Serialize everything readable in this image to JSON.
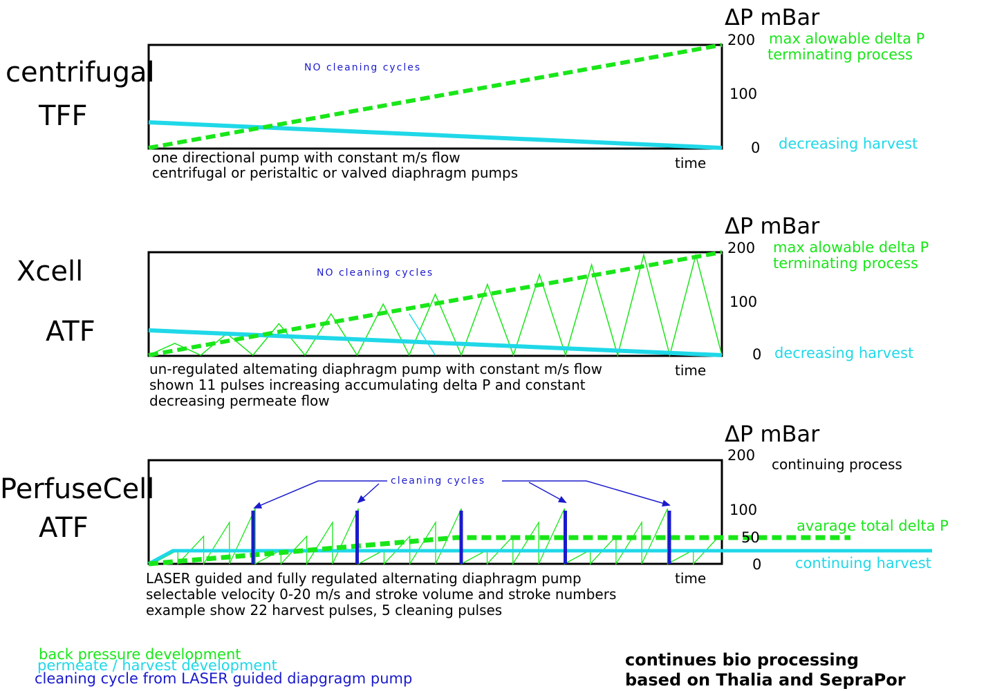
{
  "colors": {
    "pressure": "#19e619",
    "harvest": "#1fd8e8",
    "cleaning": "#1a1acc",
    "frame": "#000000"
  },
  "axis_title": "ΔP mBar",
  "time_label": "time",
  "panels": [
    {
      "id": "tff",
      "label_line1": "centrifugal",
      "label_line2": "TFF",
      "note": "NO cleaning cycles",
      "ticks": [
        "200",
        "100",
        "0"
      ],
      "right_top_line1": "max alowable delta P",
      "right_top_line2": "terminating process",
      "right_bottom": "decreasing harvest",
      "caption": [
        "one directional pump with constant m/s flow",
        "centrifugal or peristaltic or valved diaphragm pumps"
      ]
    },
    {
      "id": "xcell",
      "label_line1": "Xcell",
      "label_line2": "ATF",
      "note": "NO cleaning cycles",
      "ticks": [
        "200",
        "100",
        "0"
      ],
      "right_top_line1": "max alowable delta P",
      "right_top_line2": "terminating process",
      "right_bottom": "decreasing harvest",
      "pulses": 11,
      "caption": [
        "un-regulated altemating diaphragm pump with constant m/s flow",
        "shown 11 pulses increasing accumulating delta P and constant",
        "decreasing permeate flow"
      ]
    },
    {
      "id": "perfusecell",
      "label_line1": "PerfuseCell",
      "label_line2": "ATF",
      "note": "cleaning cycles",
      "ticks": [
        "200",
        "100",
        "50",
        "0"
      ],
      "right_top_line1": "continuing process",
      "right_mid": "avarage total delta P",
      "right_bottom": "continuing harvest",
      "harvest_pulses": 22,
      "cleaning_pulses": 5,
      "caption": [
        "LASER guided and fully regulated alternating diaphragm pump",
        "selectable velocity 0-20 m/s and stroke volume and stroke numbers",
        "example show 22 harvest pulses, 5 cleaning pulses"
      ]
    }
  ],
  "legend": {
    "pressure": "back pressure development",
    "harvest": "permeate / harvest development",
    "cleaning": "cleaning cycle from LASER guided diapgragm pump"
  },
  "footer": {
    "line1": "continues bio processing",
    "line2": "based on Thalia and SepraPor"
  }
}
